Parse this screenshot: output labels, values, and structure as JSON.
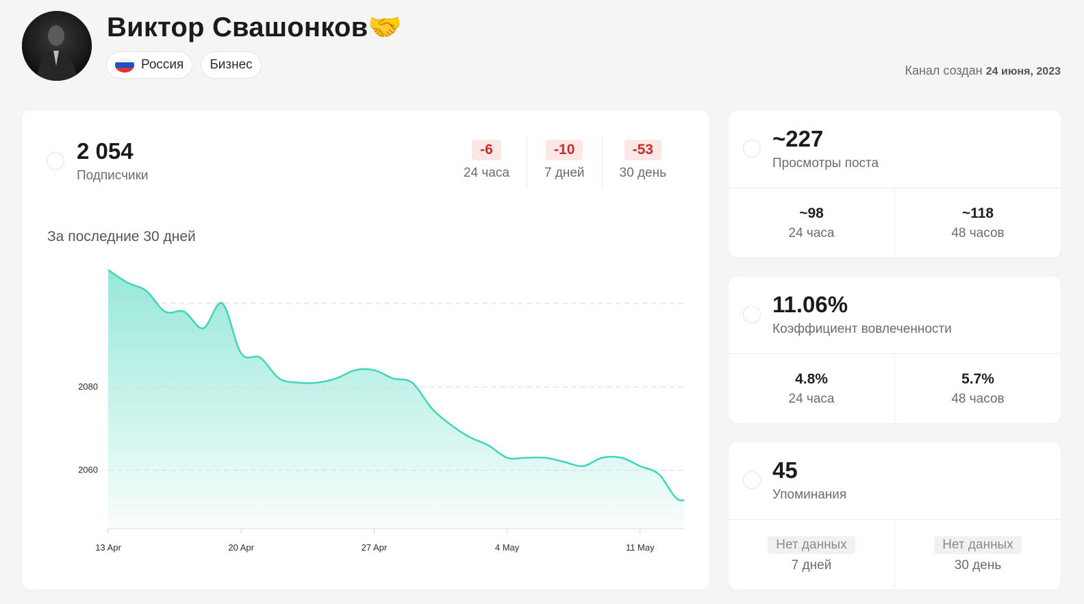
{
  "header": {
    "title": "Виктор Свашонков🤝",
    "tags": [
      "Россия",
      "Бизнес"
    ],
    "created_prefix": "Канал создан",
    "created_date": "24 июня, 2023"
  },
  "subscribers": {
    "value": "2 054",
    "label": "Подписчики",
    "deltas": [
      {
        "value": "-6",
        "period": "24 часа"
      },
      {
        "value": "-10",
        "period": "7 дней"
      },
      {
        "value": "-53",
        "period": "30 день"
      }
    ]
  },
  "chart_heading": "За последние 30 дней",
  "chart_data": {
    "type": "area",
    "x": [
      "13 Apr",
      "14 Apr",
      "15 Apr",
      "16 Apr",
      "17 Apr",
      "18 Apr",
      "19 Apr",
      "20 Apr",
      "21 Apr",
      "22 Apr",
      "23 Apr",
      "24 Apr",
      "25 Apr",
      "26 Apr",
      "27 Apr",
      "28 Apr",
      "29 Apr",
      "30 Apr",
      "1 May",
      "2 May",
      "3 May",
      "4 May",
      "5 May",
      "6 May",
      "7 May",
      "8 May",
      "9 May",
      "10 May",
      "11 May",
      "12 May",
      "13 May",
      "14 May"
    ],
    "values": [
      2108,
      2105,
      2103,
      2098,
      2098,
      2094,
      2100,
      2088,
      2087,
      2082,
      2081,
      2081,
      2082,
      2084,
      2084,
      2082,
      2081,
      2075,
      2071,
      2068,
      2066,
      2063,
      2063,
      2063,
      2062,
      2061,
      2063,
      2063,
      2061,
      2059,
      2053,
      2054
    ],
    "x_ticks": [
      "13 Apr",
      "20 Apr",
      "27 Apr",
      "4 May",
      "11 May"
    ],
    "y_ticks": [
      2060,
      2080
    ],
    "ylim": [
      2046,
      2110
    ],
    "grid": true,
    "color": "#40d5b9"
  },
  "views": {
    "value": "~227",
    "label": "Просмотры поста",
    "cells": [
      {
        "value": "~98",
        "label": "24 часа"
      },
      {
        "value": "~118",
        "label": "48 часов"
      }
    ]
  },
  "engagement": {
    "value": "11.06%",
    "label": "Коэффициент вовлеченности",
    "cells": [
      {
        "value": "4.8%",
        "label": "24 часа"
      },
      {
        "value": "5.7%",
        "label": "48 часов"
      }
    ]
  },
  "mentions": {
    "value": "45",
    "label": "Упоминания",
    "cells": [
      {
        "value": "Нет данных",
        "label": "7 дней"
      },
      {
        "value": "Нет данных",
        "label": "30 день"
      }
    ]
  }
}
